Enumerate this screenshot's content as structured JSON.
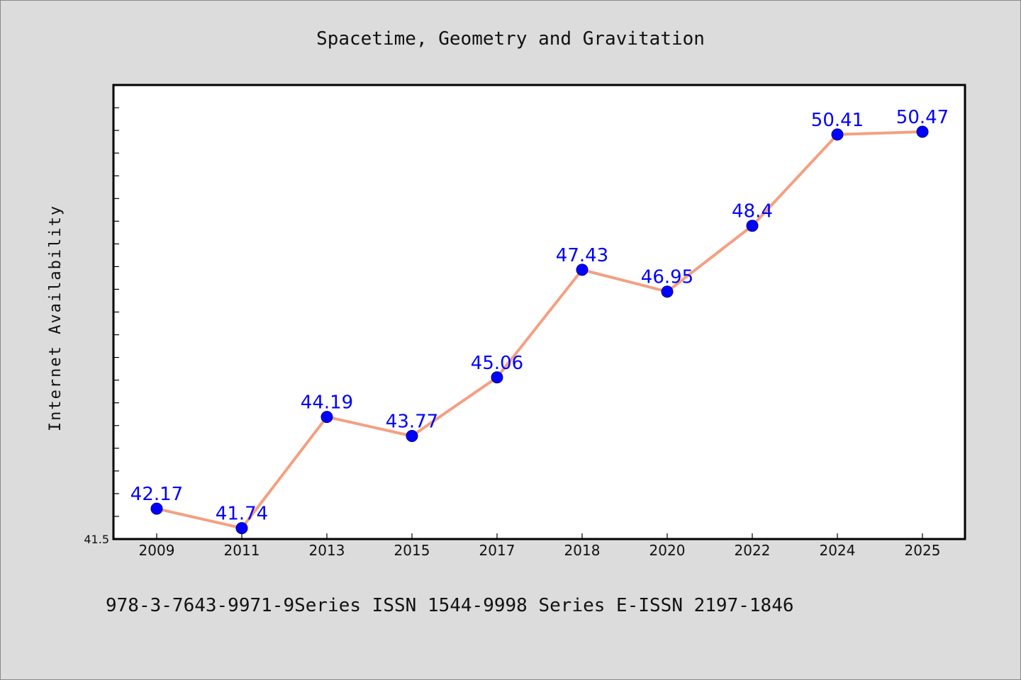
{
  "chart_data": {
    "type": "line",
    "title": "Spacetime, Geometry and Gravitation",
    "xlabel": "",
    "ylabel": "Internet Availability",
    "categories": [
      "2009",
      "2011",
      "2013",
      "2015",
      "2017",
      "2018",
      "2020",
      "2022",
      "2024",
      "2025"
    ],
    "series": [
      {
        "values": [
          42.17,
          41.74,
          44.19,
          43.77,
          45.06,
          47.43,
          46.95,
          48.4,
          50.41,
          50.47
        ],
        "labels": [
          "42.17",
          "41.74",
          "44.19",
          "43.77",
          "45.06",
          "47.43",
          "46.95",
          "48.4",
          "50.41",
          "50.47"
        ]
      }
    ],
    "ylim": [
      41.5,
      51.5
    ],
    "y_tick_labels": [
      "41.5"
    ],
    "grid": false,
    "legend": "none",
    "colors": {
      "line": "#f4a081",
      "marker": "#0000ff",
      "data_label": "#0000ff",
      "plot_background": "#ffffff",
      "figure_background": "#dcdcdc"
    }
  },
  "footnote": "978-3-7643-9971-9Series ISSN 1544-9998 Series E-ISSN 2197-1846"
}
